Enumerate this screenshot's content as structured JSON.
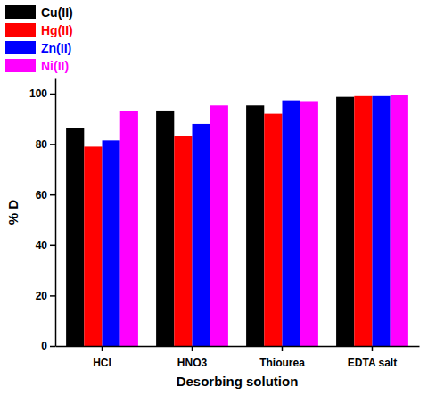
{
  "chart_data": {
    "type": "bar",
    "x_label": "Desorbing solution",
    "y_label": "% D",
    "categories": [
      "HCl",
      "HNO3",
      "Thiourea",
      "EDTA salt"
    ],
    "series": [
      {
        "name": "Cu(II)",
        "color": "#000000",
        "values": [
          86.5,
          93.3,
          95.3,
          98.7
        ]
      },
      {
        "name": "Hg(II)",
        "color": "#ff0000",
        "values": [
          79,
          83.3,
          92,
          99
        ]
      },
      {
        "name": "Zn(II)",
        "color": "#0000ff",
        "values": [
          81.5,
          88,
          97.3,
          99
        ]
      },
      {
        "name": "Ni(II)",
        "color": "#ff00ff",
        "values": [
          93,
          95.3,
          97,
          99.5
        ]
      }
    ],
    "ylim": [
      0,
      106
    ],
    "yticks": [
      0,
      20,
      40,
      60,
      80,
      100
    ],
    "grid": false,
    "legend": "upper left"
  }
}
